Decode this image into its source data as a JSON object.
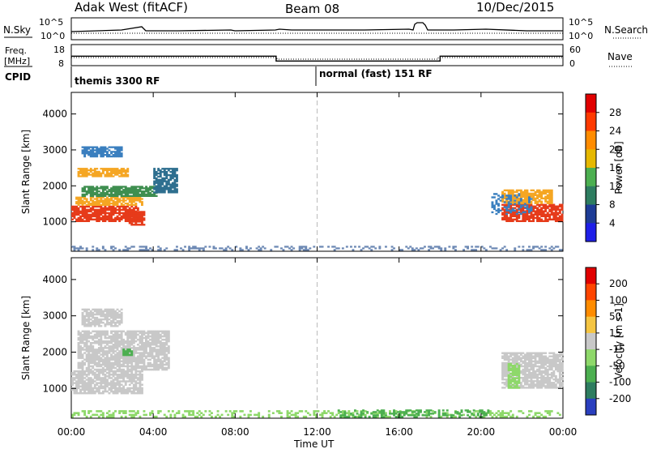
{
  "header": {
    "station": "Adak West (fitACF)",
    "beam": "Beam 08",
    "date": "10/Dec/2015"
  },
  "panels": {
    "nsky_label": "N.Sky",
    "nsearch_label": "N.Search",
    "freq_label_1": "Freq.",
    "freq_label_2": "[MHz]",
    "nave_label": "Nave",
    "cpid_label": "CPID",
    "nsky_ticks": [
      "10^5",
      "10^0"
    ],
    "nsearch_ticks": [
      "10^5",
      "10^0"
    ],
    "freq_ticks": [
      "18",
      "8"
    ],
    "nave_ticks": [
      "60",
      "0"
    ],
    "cpid_segments": [
      "themis 3300 RF",
      "normal (fast) 151 RF"
    ],
    "freq_profile": {
      "hours": [
        0,
        10,
        10,
        18,
        18,
        24
      ],
      "mhz": [
        12.5,
        12.5,
        10.2,
        10.2,
        12.5,
        12.5
      ]
    }
  },
  "chart_data": [
    {
      "type": "heatmap",
      "name": "power",
      "ylabel": "Slant Range [km]",
      "y_ticks": [
        1000,
        2000,
        3000,
        4000
      ],
      "ylim": [
        180,
        4600
      ],
      "x_ticks": [
        "00:00",
        "04:00",
        "08:00",
        "12:00",
        "16:00",
        "20:00",
        "00:00"
      ],
      "xlim": [
        0,
        24
      ],
      "colorbar": {
        "label": "Power [dB]",
        "ticks": [
          "4",
          "8",
          "12",
          "16",
          "20",
          "24",
          "28"
        ],
        "colors": [
          "#1f1fe8",
          "#1e3c96",
          "#2e7d60",
          "#4caf50",
          "#e6b800",
          "#ff8c00",
          "#ff3a00",
          "#e10000"
        ]
      },
      "regions": [
        {
          "t0": 0.0,
          "t1": 3.3,
          "r0": 1000,
          "r1": 1450,
          "color": "#e63b1a"
        },
        {
          "t0": 2.8,
          "t1": 3.6,
          "r0": 900,
          "r1": 1300,
          "color": "#e63b1a"
        },
        {
          "t0": 0.2,
          "t1": 3.5,
          "r0": 1450,
          "r1": 1700,
          "color": "#f5a623"
        },
        {
          "t0": 0.5,
          "t1": 4.2,
          "r0": 1700,
          "r1": 2000,
          "color": "#3f8f50"
        },
        {
          "t0": 0.3,
          "t1": 2.8,
          "r0": 2250,
          "r1": 2500,
          "color": "#f5a623"
        },
        {
          "t0": 4.0,
          "t1": 5.2,
          "r0": 1800,
          "r1": 2500,
          "color": "#2e6f8f"
        },
        {
          "t0": 0.5,
          "t1": 2.5,
          "r0": 2800,
          "r1": 3100,
          "color": "#3a7fbf"
        },
        {
          "t0": 21.0,
          "t1": 24.0,
          "r0": 1000,
          "r1": 1500,
          "color": "#e63b1a"
        },
        {
          "t0": 21.0,
          "t1": 23.5,
          "r0": 1500,
          "r1": 1900,
          "color": "#f5a623"
        },
        {
          "t0": 20.5,
          "t1": 22.5,
          "r0": 1200,
          "r1": 1800,
          "color": "#3a7fbf"
        },
        {
          "t0": 0.0,
          "t1": 24.0,
          "r0": 200,
          "r1": 330,
          "color": "#6e8ab5"
        }
      ]
    },
    {
      "type": "heatmap",
      "name": "velocity",
      "ylabel": "Slant Range [km]",
      "y_ticks": [
        1000,
        2000,
        3000,
        4000
      ],
      "ylim": [
        180,
        4600
      ],
      "x_ticks": [
        "00:00",
        "04:00",
        "08:00",
        "12:00",
        "16:00",
        "20:00",
        "00:00"
      ],
      "xlim": [
        0,
        24
      ],
      "xlabel": "Time UT",
      "colorbar": {
        "label": "Velocity [m s-1]",
        "ticks": [
          "200",
          "100",
          "50",
          "15",
          "-15",
          "-50",
          "-100",
          "-200"
        ],
        "colors": [
          "#2a3fbf",
          "#2e7d60",
          "#4caf50",
          "#8ed86a",
          "#c8c8c8",
          "#f5c542",
          "#ff8c00",
          "#ff4500",
          "#e10000"
        ]
      },
      "regions": [
        {
          "t0": 0.0,
          "t1": 3.5,
          "r0": 850,
          "r1": 1500,
          "color": "#c8c8c8"
        },
        {
          "t0": 0.3,
          "t1": 4.8,
          "r0": 1500,
          "r1": 2600,
          "color": "#c8c8c8"
        },
        {
          "t0": 0.5,
          "t1": 2.5,
          "r0": 2700,
          "r1": 3200,
          "color": "#c8c8c8"
        },
        {
          "t0": 21.0,
          "t1": 24.0,
          "r0": 1000,
          "r1": 2000,
          "color": "#c8c8c8"
        },
        {
          "t0": 21.3,
          "t1": 21.9,
          "r0": 1000,
          "r1": 1700,
          "color": "#8ed86a"
        },
        {
          "t0": 2.5,
          "t1": 3.0,
          "r0": 1900,
          "r1": 2100,
          "color": "#4caf50"
        },
        {
          "t0": 0.0,
          "t1": 24.0,
          "r0": 200,
          "r1": 400,
          "color": "#8ed86a"
        },
        {
          "t0": 13.0,
          "t1": 20.5,
          "r0": 200,
          "r1": 420,
          "color": "#4caf50"
        }
      ]
    }
  ]
}
